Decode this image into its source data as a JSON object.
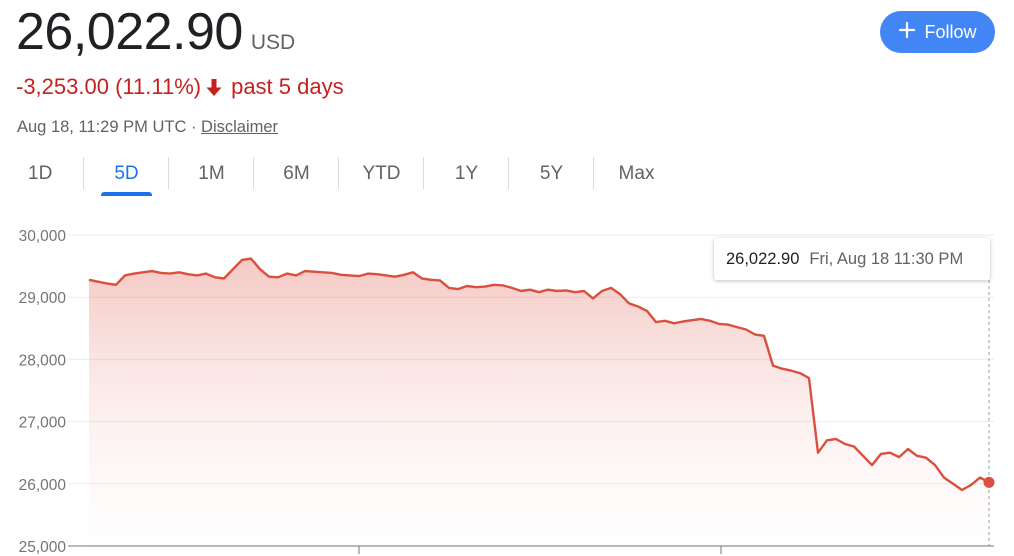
{
  "quote": {
    "price": "26,022.90",
    "currency": "USD",
    "change": "-3,253.00 (11.11%)",
    "period": "past 5 days",
    "timestamp": "Aug 18, 11:29 PM UTC · ",
    "disclaimer": "Disclaimer",
    "negative_color": "#c5221f"
  },
  "follow_button": {
    "label": "Follow",
    "icon": "plus-icon"
  },
  "range_tabs": [
    {
      "label": "1D",
      "active": false
    },
    {
      "label": "5D",
      "active": true
    },
    {
      "label": "1M",
      "active": false
    },
    {
      "label": "6M",
      "active": false
    },
    {
      "label": "YTD",
      "active": false
    },
    {
      "label": "1Y",
      "active": false
    },
    {
      "label": "5Y",
      "active": false
    },
    {
      "label": "Max",
      "active": false
    }
  ],
  "tooltip": {
    "value": "26,022.90",
    "date": "Fri, Aug 18 11:30 PM"
  },
  "chart_data": {
    "type": "area",
    "y_tick_labels": [
      "30,000",
      "29,000",
      "28,000",
      "27,000",
      "26,000",
      "25,000"
    ],
    "y_ticks": [
      30000,
      29000,
      28000,
      27000,
      26000,
      25000
    ],
    "ylim": [
      25000,
      30000
    ],
    "line_color": "#d9503f",
    "grid": true,
    "x_index_max": 100,
    "series": [
      {
        "x": [
          0,
          1,
          2,
          3,
          4,
          5,
          6,
          7,
          8,
          9,
          10,
          11,
          12,
          13,
          14,
          15,
          16,
          17,
          18,
          19,
          20,
          21,
          22,
          23,
          24,
          25,
          26,
          27,
          28,
          29,
          30,
          31,
          32,
          33,
          34,
          35,
          36,
          37,
          38,
          39,
          40,
          41,
          42,
          43,
          44,
          45,
          46,
          47,
          48,
          49,
          50,
          51,
          52,
          53,
          54,
          55,
          56,
          57,
          58,
          59,
          60,
          61,
          62,
          63,
          64,
          65,
          66,
          67,
          68,
          69,
          70,
          71,
          72,
          73,
          74,
          75,
          76,
          77,
          78,
          79,
          80,
          81,
          82,
          83,
          84,
          85,
          86,
          87,
          88,
          89,
          90,
          91,
          92,
          93,
          94,
          95,
          96,
          97,
          98,
          99,
          100
        ],
        "values": [
          29280,
          29250,
          29220,
          29200,
          29350,
          29380,
          29400,
          29420,
          29390,
          29380,
          29400,
          29370,
          29350,
          29380,
          29320,
          29300,
          29450,
          29600,
          29620,
          29450,
          29330,
          29320,
          29380,
          29350,
          29420,
          29410,
          29400,
          29390,
          29360,
          29350,
          29340,
          29380,
          29370,
          29350,
          29330,
          29360,
          29400,
          29300,
          29280,
          29270,
          29150,
          29130,
          29180,
          29160,
          29170,
          29200,
          29190,
          29150,
          29100,
          29120,
          29080,
          29120,
          29100,
          29110,
          29080,
          29100,
          28980,
          29100,
          29150,
          29050,
          28900,
          28850,
          28780,
          28600,
          28620,
          28580,
          28610,
          28630,
          28650,
          28620,
          28570,
          28560,
          28520,
          28480,
          28400,
          28380,
          27900,
          27850,
          27820,
          27780,
          27700,
          26500,
          26700,
          26720,
          26640,
          26600,
          26450,
          26300,
          26480,
          26500,
          26430,
          26560,
          26450,
          26420,
          26300,
          26100,
          26000,
          25900,
          25980,
          26100,
          26022.9
        ]
      }
    ]
  }
}
